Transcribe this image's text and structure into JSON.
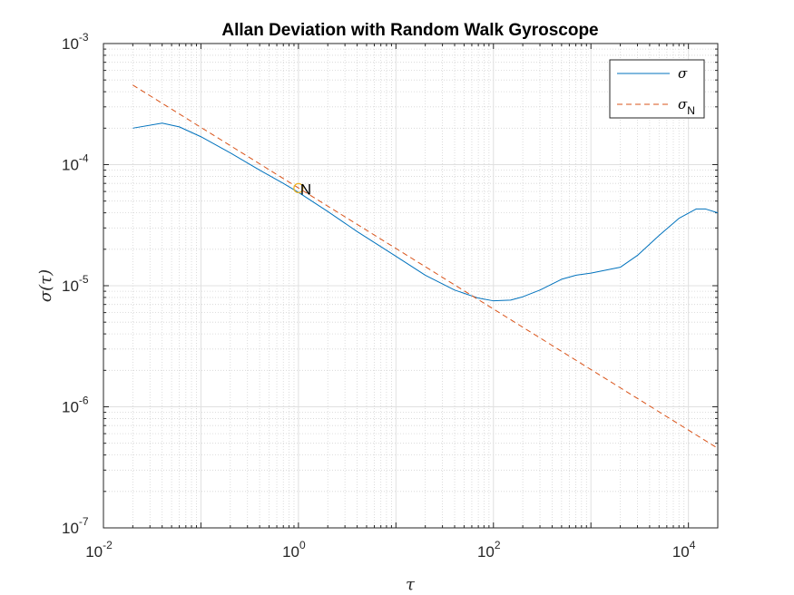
{
  "chart_data": {
    "type": "line",
    "title": "Allan Deviation with Random Walk Gyroscope",
    "xlabel": "τ",
    "ylabel": "σ(τ)",
    "xscale": "log",
    "yscale": "log",
    "xlim": [
      0.01,
      20000
    ],
    "ylim": [
      1e-07,
      0.001
    ],
    "x_ticks": [
      {
        "base": "10",
        "exp": "-2",
        "value": 0.01
      },
      {
        "base": "10",
        "exp": "0",
        "value": 1
      },
      {
        "base": "10",
        "exp": "2",
        "value": 100
      },
      {
        "base": "10",
        "exp": "4",
        "value": 10000
      }
    ],
    "y_ticks": [
      {
        "base": "10",
        "exp": "-3",
        "value": 0.001
      },
      {
        "base": "10",
        "exp": "-4",
        "value": 0.0001
      },
      {
        "base": "10",
        "exp": "-5",
        "value": 1e-05
      },
      {
        "base": "10",
        "exp": "-6",
        "value": 1e-06
      },
      {
        "base": "10",
        "exp": "-7",
        "value": 1e-07
      }
    ],
    "grid": "on (major and minor)",
    "legend_position": "top-right",
    "series": [
      {
        "name": "σ",
        "style": "solid",
        "color": "#0072BD",
        "x": [
          0.02,
          0.04,
          0.06,
          0.1,
          0.2,
          0.4,
          0.7,
          1,
          2,
          4,
          7,
          10,
          20,
          40,
          70,
          100,
          150,
          200,
          300,
          500,
          700,
          1000,
          2000,
          3000,
          5000,
          8000,
          12000,
          15000,
          20000
        ],
        "y": [
          0.0002,
          0.00022,
          0.000205,
          0.00017,
          0.000125,
          9e-05,
          7e-05,
          5.9e-05,
          4.1e-05,
          2.8e-05,
          2.1e-05,
          1.75e-05,
          1.22e-05,
          9.2e-06,
          7.9e-06,
          7.5e-06,
          7.6e-06,
          8.1e-06,
          9.2e-06,
          1.13e-05,
          1.22e-05,
          1.27e-05,
          1.42e-05,
          1.78e-05,
          2.6e-05,
          3.6e-05,
          4.3e-05,
          4.3e-05,
          4e-05
        ]
      },
      {
        "name": "σ",
        "name_subscript": "N",
        "style": "dashed",
        "color": "#D95319",
        "x": [
          0.02,
          20000
        ],
        "y": [
          0.000454,
          4.54e-07
        ]
      }
    ],
    "annotations": [
      {
        "text": "N",
        "x": 1,
        "y": 6.4e-05,
        "marker": "circle",
        "marker_color": "#EDB120"
      }
    ]
  }
}
